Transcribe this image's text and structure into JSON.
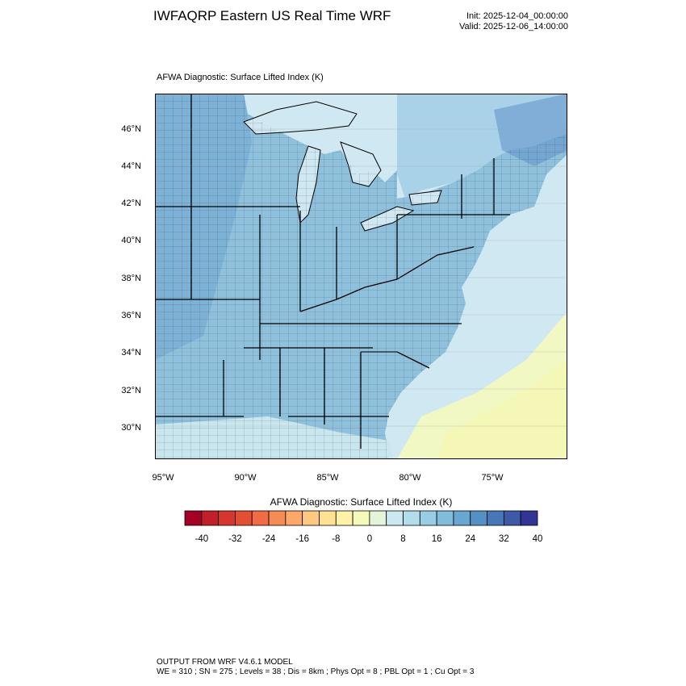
{
  "header": {
    "title": "IWFAQRP Eastern US Real Time WRF",
    "init": "Init: 2025-12-04_00:00:00",
    "valid": "Valid: 2025-12-06_14:00:00"
  },
  "map": {
    "subtitle": "AFWA Diagnostic: Surface Lifted Index   (K)",
    "lat_labels": [
      "46°N",
      "44°N",
      "42°N",
      "40°N",
      "38°N",
      "36°N",
      "34°N",
      "32°N",
      "30°N"
    ],
    "lon_labels": [
      "95°W",
      "90°W",
      "85°W",
      "80°W",
      "75°W"
    ],
    "colors": {
      "land_blue": "#8fc0dc",
      "land_dark": "#5f97c8",
      "water": "#cfe8f2",
      "ocean_yellow": "#f3f9c6",
      "border": "#000000"
    }
  },
  "colorbar": {
    "title": "AFWA Diagnostic: Surface Lifted Index  (K)",
    "colors": [
      "#a50026",
      "#c11f2a",
      "#d7362e",
      "#e34f33",
      "#f16b44",
      "#f68b55",
      "#fba86a",
      "#fdc87f",
      "#fee292",
      "#fdf2a8",
      "#f4fab8",
      "#e4f4d8",
      "#cbe8f0",
      "#b2ddeb",
      "#99cde3",
      "#80bcdb",
      "#67a7d0",
      "#5391c4",
      "#4777b6",
      "#3e5aa6",
      "#313695"
    ],
    "ticks": [
      "-40",
      "-32",
      "-24",
      "-16",
      "-8",
      "0",
      "8",
      "16",
      "24",
      "32",
      "40"
    ]
  },
  "footer": {
    "line1": "OUTPUT FROM WRF V4.6.1 MODEL",
    "line2": "WE = 310 ; SN = 275 ; Levels = 38 ; Dis = 8km ; Phys Opt = 8 ; PBL Opt = 1 ; Cu Opt = 3"
  }
}
